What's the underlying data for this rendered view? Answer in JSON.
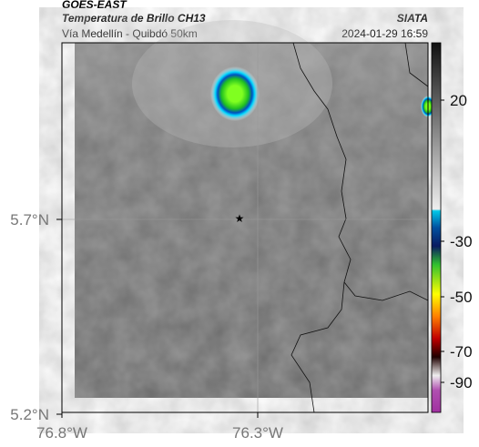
{
  "header": {
    "source": "GOES-EAST",
    "product": "Temperatura de Brillo CH13",
    "region": "Vía Medellín - Quibdó 50km",
    "agency": "SIATA",
    "timestamp": "2024-01-29 16:59"
  },
  "axes": {
    "lat_ticks": [
      "5.7°N",
      "5.2°N"
    ],
    "lon_ticks": [
      "76.8°W",
      "76.3°W"
    ]
  },
  "colorbar": {
    "ticks": [
      "20",
      "-30",
      "-50",
      "-70",
      "-90"
    ]
  }
}
